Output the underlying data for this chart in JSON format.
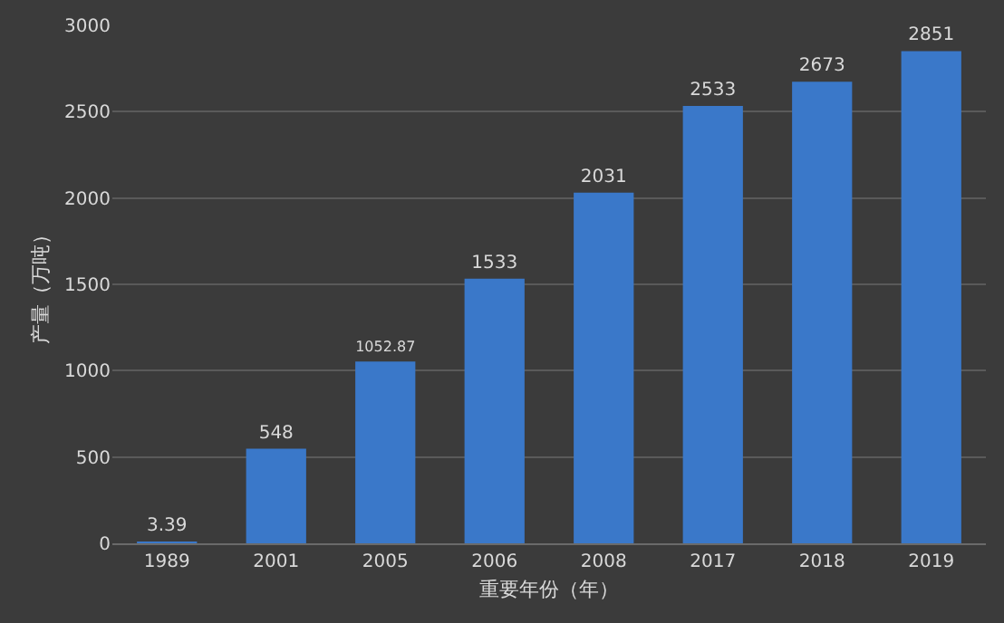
{
  "chart_data": {
    "type": "bar",
    "xlabel": "重要年份（年）",
    "ylabel": "产量（万吨）",
    "categories": [
      "1989",
      "2001",
      "2005",
      "2006",
      "2008",
      "2017",
      "2018",
      "2019"
    ],
    "values": [
      3.39,
      548,
      1052.87,
      1533,
      2031,
      2533,
      2673,
      2851
    ],
    "color": "#3a78c9",
    "data_labels": true,
    "grid": "y",
    "legend": false,
    "ylim": [
      0,
      3000
    ],
    "yticks": [
      0,
      500,
      1000,
      1500,
      2000,
      2500,
      3000
    ]
  }
}
